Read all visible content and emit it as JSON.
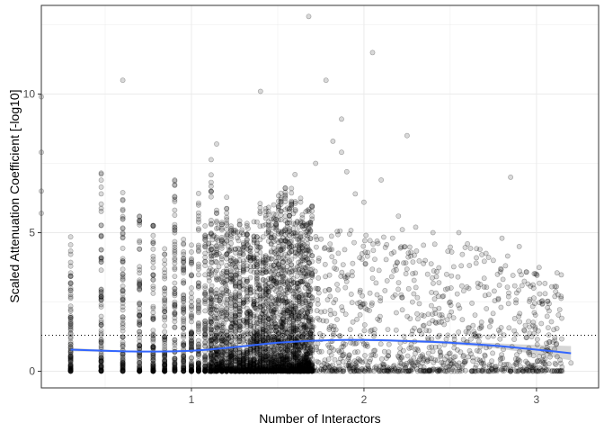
{
  "chart_data": {
    "type": "scatter",
    "title": "",
    "xlabel": "Number of Interactors",
    "ylabel": "Scaled Attenuation Coefficient [-log10]",
    "xlim": [
      0.13,
      3.36
    ],
    "ylim": [
      -0.6,
      13.2
    ],
    "x_ticks": [
      1,
      2,
      3
    ],
    "y_ticks": [
      0,
      5,
      10
    ],
    "x_tick_labels": [
      "1",
      "2",
      "3"
    ],
    "y_tick_labels": [
      "0",
      "5",
      "10"
    ],
    "grid": true,
    "legend": "none",
    "reference_line": {
      "y": 1.3,
      "style": "dotted"
    },
    "x_columns": [
      0.3,
      0.477,
      0.602,
      0.699,
      0.778,
      0.845,
      0.903,
      0.954,
      1.0,
      1.041,
      1.079,
      1.114,
      1.146,
      1.176,
      1.204,
      1.23,
      1.255,
      1.279,
      1.301,
      1.322,
      1.342,
      1.362,
      1.38,
      1.398,
      1.415,
      1.431,
      1.447,
      1.462,
      1.477,
      1.491,
      1.505,
      1.519,
      1.531,
      1.544,
      1.556,
      1.568,
      1.58,
      1.591,
      1.602,
      1.613,
      1.623,
      1.633,
      1.643,
      1.653,
      1.663,
      1.672,
      1.681,
      1.69,
      1.699
    ],
    "column_top": [
      4.9,
      7.2,
      6.6,
      5.7,
      5.8,
      4.7,
      6.9,
      5.0,
      5.4,
      6.8,
      5.3,
      8.2,
      6.3,
      5.9,
      6.8,
      5.3,
      5.1,
      5.5,
      5.2,
      5.4,
      4.8,
      5.6,
      5.7,
      6.1,
      5.4,
      5.9,
      6.0,
      5.5,
      6.2,
      5.8,
      6.4,
      6.5,
      5.9,
      7.0,
      6.0,
      6.3,
      6.6,
      6.0,
      6.2,
      5.8,
      5.5,
      6.3,
      6.0,
      6.1,
      5.8,
      5.9,
      6.4,
      5.7,
      6.0
    ],
    "extra_points": [
      {
        "x": 0.13,
        "y": 7.9
      },
      {
        "x": 0.13,
        "y": 6.5
      },
      {
        "x": 0.13,
        "y": 5.7
      },
      {
        "x": 0.13,
        "y": 9.9
      },
      {
        "x": 0.477,
        "y": 6.4
      },
      {
        "x": 0.602,
        "y": 10.5
      },
      {
        "x": 0.903,
        "y": 6.9
      },
      {
        "x": 1.146,
        "y": 8.2
      },
      {
        "x": 1.4,
        "y": 10.1
      },
      {
        "x": 1.6,
        "y": 7.1
      },
      {
        "x": 1.68,
        "y": 12.8
      },
      {
        "x": 1.72,
        "y": 7.5
      },
      {
        "x": 1.78,
        "y": 10.5
      },
      {
        "x": 1.82,
        "y": 8.3
      },
      {
        "x": 1.87,
        "y": 9.1
      },
      {
        "x": 1.87,
        "y": 7.9
      },
      {
        "x": 1.9,
        "y": 7.2
      },
      {
        "x": 1.95,
        "y": 6.4
      },
      {
        "x": 2.0,
        "y": 6.1
      },
      {
        "x": 2.05,
        "y": 11.5
      },
      {
        "x": 2.1,
        "y": 6.9
      },
      {
        "x": 2.25,
        "y": 8.5
      },
      {
        "x": 2.2,
        "y": 5.6
      },
      {
        "x": 2.3,
        "y": 5.2
      },
      {
        "x": 2.4,
        "y": 5.0
      },
      {
        "x": 2.55,
        "y": 5.0
      },
      {
        "x": 2.6,
        "y": 4.6
      },
      {
        "x": 2.75,
        "y": 4.0
      },
      {
        "x": 2.8,
        "y": 4.8
      },
      {
        "x": 2.85,
        "y": 7.0
      },
      {
        "x": 2.9,
        "y": 4.5
      },
      {
        "x": 3.0,
        "y": 3.5
      },
      {
        "x": 3.05,
        "y": 2.8
      },
      {
        "x": 2.65,
        "y": 3.9
      },
      {
        "x": 2.5,
        "y": 2.5
      },
      {
        "x": 3.1,
        "y": 1.5
      },
      {
        "x": 3.2,
        "y": 0.3
      }
    ],
    "smooth_fit": {
      "x": [
        0.3,
        0.4,
        0.5,
        0.6,
        0.7,
        0.8,
        0.9,
        1.0,
        1.1,
        1.2,
        1.3,
        1.4,
        1.5,
        1.6,
        1.7,
        1.8,
        1.9,
        2.0,
        2.1,
        2.2,
        2.3,
        2.4,
        2.5,
        2.6,
        2.7,
        2.8,
        2.9,
        3.0,
        3.1,
        3.2
      ],
      "y": [
        0.78,
        0.76,
        0.74,
        0.72,
        0.71,
        0.71,
        0.72,
        0.74,
        0.78,
        0.84,
        0.9,
        0.97,
        1.03,
        1.07,
        1.1,
        1.12,
        1.13,
        1.13,
        1.12,
        1.1,
        1.08,
        1.06,
        1.03,
        0.99,
        0.95,
        0.9,
        0.84,
        0.78,
        0.72,
        0.65
      ],
      "se": [
        0.06,
        0.05,
        0.04,
        0.03,
        0.03,
        0.02,
        0.02,
        0.02,
        0.02,
        0.02,
        0.02,
        0.02,
        0.03,
        0.03,
        0.03,
        0.03,
        0.03,
        0.04,
        0.04,
        0.04,
        0.05,
        0.05,
        0.06,
        0.07,
        0.08,
        0.1,
        0.13,
        0.17,
        0.21,
        0.26
      ],
      "color": "#3366ff",
      "band_color": "#999999"
    },
    "point_color": "#000000"
  }
}
